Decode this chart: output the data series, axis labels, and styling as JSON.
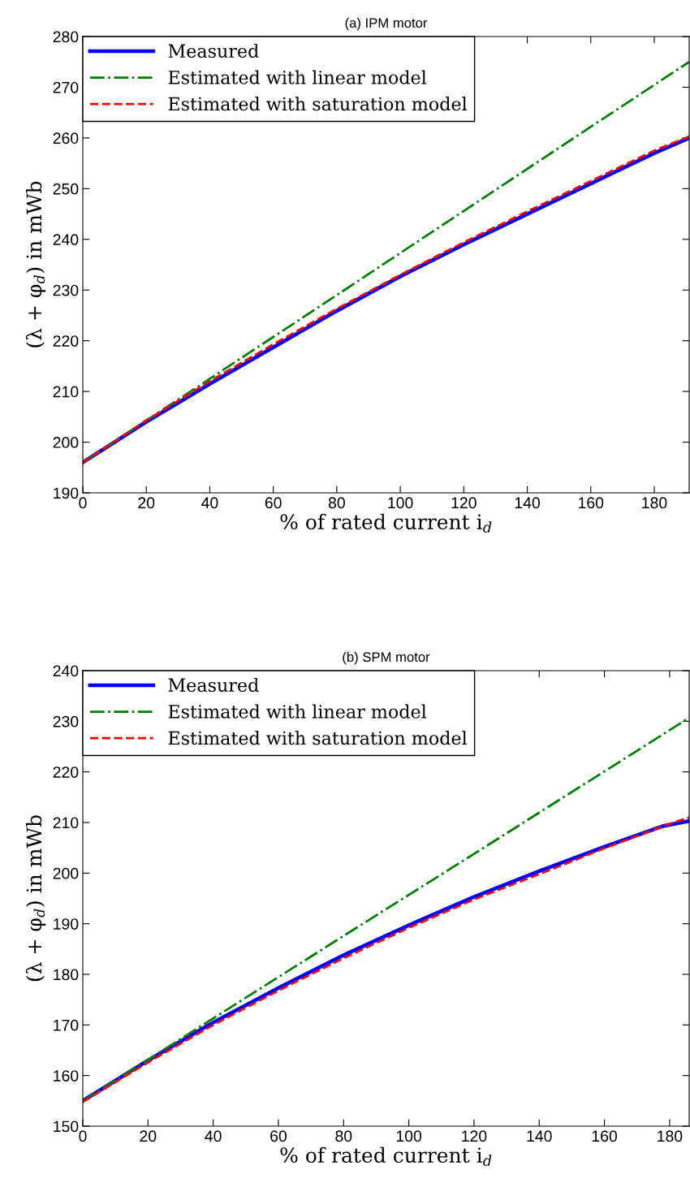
{
  "chart_data": [
    {
      "type": "line",
      "title": "(a) IPM motor",
      "xlabel": "% of rated current i$_{d}$",
      "ylabel": "(λ + φ$_{d}$) in mWb",
      "xlim": [
        0,
        191
      ],
      "ylim": [
        190,
        280
      ],
      "xticks": [
        0,
        20,
        40,
        60,
        80,
        100,
        120,
        140,
        160,
        180
      ],
      "yticks": [
        190,
        200,
        210,
        220,
        230,
        240,
        250,
        260,
        270,
        280
      ],
      "grid": false,
      "legend": "top left",
      "series": [
        {
          "name": "Measured",
          "color": "#0000ff",
          "line_style": "solid",
          "x": [
            0,
            20,
            40,
            60,
            80,
            100,
            120,
            140,
            160,
            180,
            191
          ],
          "values": [
            196,
            204,
            211.5,
            218.7,
            225.9,
            232.7,
            239,
            245,
            251,
            257,
            260
          ]
        },
        {
          "name": "Estimated with linear model",
          "color": "#008000",
          "line_style": "dashdot",
          "x": [
            0,
            40,
            80,
            120,
            160,
            191
          ],
          "values": [
            196,
            212.5,
            229,
            245.6,
            262.2,
            275
          ]
        },
        {
          "name": "Estimated with saturation model",
          "color": "#ff0000",
          "line_style": "dashed",
          "x": [
            0,
            20,
            40,
            60,
            80,
            100,
            120,
            140,
            160,
            180,
            191
          ],
          "values": [
            196,
            204.3,
            212,
            219.3,
            226.3,
            233,
            239.4,
            245.5,
            251.5,
            257.5,
            260.3
          ]
        }
      ]
    },
    {
      "type": "line",
      "title": "(b) SPM motor",
      "xlabel": "% of rated current i$_{d}$",
      "ylabel": "(λ + φ$_{d}$) in mWb",
      "xlim": [
        0,
        186
      ],
      "ylim": [
        150,
        240
      ],
      "xticks": [
        0,
        20,
        40,
        60,
        80,
        100,
        120,
        140,
        160,
        180
      ],
      "yticks": [
        150,
        160,
        170,
        180,
        190,
        200,
        210,
        220,
        230,
        240
      ],
      "grid": false,
      "legend": "top left",
      "series": [
        {
          "name": "Measured",
          "color": "#0000ff",
          "line_style": "solid",
          "x": [
            0,
            20,
            40,
            60,
            80,
            100,
            120,
            140,
            160,
            178,
            186
          ],
          "values": [
            155,
            163,
            170.5,
            177.3,
            183.8,
            189.7,
            195.3,
            200.4,
            205.2,
            209.3,
            210.3
          ]
        },
        {
          "name": "Estimated with linear model",
          "color": "#008000",
          "line_style": "dashdot",
          "x": [
            0,
            40,
            80,
            120,
            160,
            186
          ],
          "values": [
            155,
            171.3,
            187.6,
            203.8,
            220.1,
            230.7
          ]
        },
        {
          "name": "Estimated with saturation model",
          "color": "#ff0000",
          "line_style": "dashed",
          "x": [
            0,
            20,
            40,
            60,
            80,
            100,
            120,
            140,
            160,
            178,
            186
          ],
          "values": [
            154.8,
            162.6,
            170,
            176.8,
            183.2,
            189.2,
            194.8,
            199.8,
            204.9,
            209.3,
            211
          ]
        }
      ]
    }
  ]
}
